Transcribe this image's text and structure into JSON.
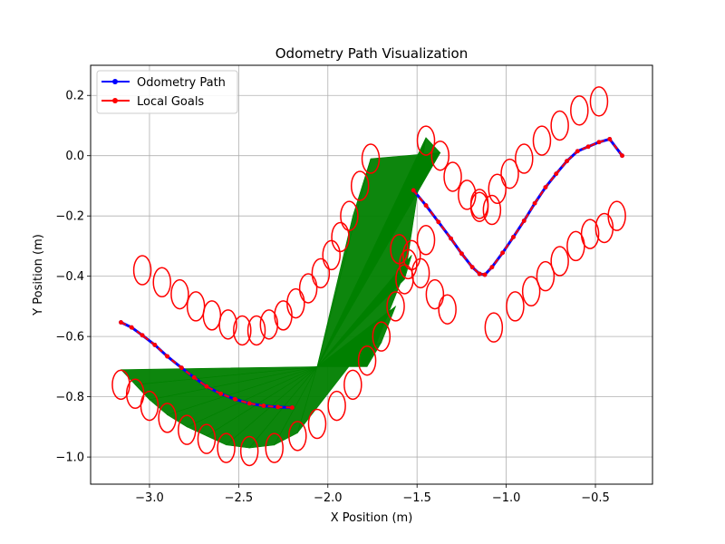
{
  "chart_data": {
    "type": "line",
    "title": "Odometry Path Visualization",
    "xlabel": "X Position (m)",
    "ylabel": "Y Position (m)",
    "xlim": [
      -3.33,
      -0.18
    ],
    "ylim": [
      -1.09,
      0.3
    ],
    "xticks": [
      -3.0,
      -2.5,
      -2.0,
      -1.5,
      -1.0,
      -0.5
    ],
    "xtick_labels": [
      "−3.0",
      "−2.5",
      "−2.0",
      "−1.5",
      "−1.0",
      "−0.5"
    ],
    "yticks": [
      -1.0,
      -0.8,
      -0.6,
      -0.4,
      -0.2,
      0.0,
      0.2
    ],
    "ytick_labels": [
      "−1.0",
      "−0.8",
      "−0.6",
      "−0.4",
      "−0.2",
      "0.0",
      "0.2"
    ],
    "grid": true,
    "legend_position": "top-left",
    "colors": {
      "odometry": "#0000ff",
      "goals": "#ff0000",
      "ellipses": "#ff0000",
      "rays": "#008000",
      "grid": "#b0b0b0"
    },
    "series": [
      {
        "name": "Odometry Path",
        "x": [
          -3.16,
          -3.1,
          -3.04,
          -2.97,
          -2.9,
          -2.82,
          -2.75,
          -2.68,
          -2.6,
          -2.52,
          -2.44,
          -2.36,
          -2.28,
          -2.2
        ],
        "y": [
          -0.553,
          -0.57,
          -0.596,
          -0.628,
          -0.666,
          -0.704,
          -0.736,
          -0.766,
          -0.79,
          -0.808,
          -0.822,
          -0.83,
          -0.834,
          -0.836
        ]
      },
      {
        "name": "Local Goals",
        "x": [
          -3.16,
          -3.1,
          -3.04,
          -2.97,
          -2.9,
          -2.82,
          -2.75,
          -2.68,
          -2.6,
          -2.52,
          -2.44,
          -2.36,
          -2.28,
          -2.2
        ],
        "y": [
          -0.553,
          -0.57,
          -0.596,
          -0.628,
          -0.666,
          -0.704,
          -0.736,
          -0.766,
          -0.79,
          -0.808,
          -0.822,
          -0.83,
          -0.834,
          -0.836
        ]
      },
      {
        "name": "",
        "x": [
          -1.52,
          -1.45,
          -1.38,
          -1.31,
          -1.25,
          -1.19,
          -1.15,
          -1.12,
          -1.08,
          -1.02,
          -0.96,
          -0.9,
          -0.84,
          -0.78,
          -0.72,
          -0.66,
          -0.6,
          -0.54,
          -0.48,
          -0.42,
          -0.35
        ],
        "y": [
          -0.115,
          -0.165,
          -0.22,
          -0.275,
          -0.325,
          -0.37,
          -0.392,
          -0.395,
          -0.37,
          -0.322,
          -0.27,
          -0.216,
          -0.158,
          -0.105,
          -0.06,
          -0.018,
          0.015,
          0.03,
          0.045,
          0.055,
          0.0
        ]
      },
      {
        "name": "",
        "x": [
          -1.52,
          -1.45,
          -1.38,
          -1.31,
          -1.25,
          -1.19,
          -1.15,
          -1.12,
          -1.08,
          -1.02,
          -0.96,
          -0.9,
          -0.84,
          -0.78,
          -0.72,
          -0.66,
          -0.6,
          -0.54,
          -0.48,
          -0.42,
          -0.35
        ],
        "y": [
          -0.115,
          -0.165,
          -0.22,
          -0.275,
          -0.325,
          -0.37,
          -0.392,
          -0.395,
          -0.37,
          -0.322,
          -0.27,
          -0.216,
          -0.158,
          -0.105,
          -0.06,
          -0.018,
          0.015,
          0.03,
          0.045,
          0.055,
          0.0
        ]
      }
    ],
    "ellipses": [
      [
        -3.16,
        -0.76
      ],
      [
        -3.08,
        -0.79
      ],
      [
        -3.0,
        -0.83
      ],
      [
        -2.9,
        -0.87
      ],
      [
        -2.79,
        -0.91
      ],
      [
        -2.68,
        -0.94
      ],
      [
        -2.57,
        -0.97
      ],
      [
        -2.44,
        -0.98
      ],
      [
        -2.3,
        -0.97
      ],
      [
        -2.17,
        -0.93
      ],
      [
        -2.06,
        -0.89
      ],
      [
        -1.95,
        -0.83
      ],
      [
        -1.86,
        -0.76
      ],
      [
        -1.78,
        -0.68
      ],
      [
        -1.7,
        -0.6
      ],
      [
        -1.62,
        -0.5
      ],
      [
        -1.57,
        -0.41
      ],
      [
        -1.53,
        -0.33
      ],
      [
        -3.04,
        -0.38
      ],
      [
        -2.93,
        -0.42
      ],
      [
        -2.83,
        -0.46
      ],
      [
        -2.74,
        -0.5
      ],
      [
        -2.65,
        -0.53
      ],
      [
        -2.56,
        -0.56
      ],
      [
        -2.48,
        -0.58
      ],
      [
        -2.4,
        -0.58
      ],
      [
        -2.33,
        -0.56
      ],
      [
        -2.25,
        -0.53
      ],
      [
        -2.18,
        -0.49
      ],
      [
        -2.11,
        -0.44
      ],
      [
        -2.04,
        -0.39
      ],
      [
        -1.98,
        -0.33
      ],
      [
        -1.93,
        -0.27
      ],
      [
        -1.88,
        -0.2
      ],
      [
        -1.82,
        -0.1
      ],
      [
        -1.76,
        -0.01
      ],
      [
        -1.6,
        -0.31
      ],
      [
        -1.55,
        -0.36
      ],
      [
        -1.48,
        -0.39
      ],
      [
        -1.45,
        -0.28
      ],
      [
        -1.4,
        -0.46
      ],
      [
        -1.33,
        -0.51
      ],
      [
        -1.45,
        0.05
      ],
      [
        -1.37,
        0.0
      ],
      [
        -1.3,
        -0.07
      ],
      [
        -1.22,
        -0.13
      ],
      [
        -1.15,
        -0.17
      ],
      [
        -1.08,
        -0.18
      ],
      [
        -1.05,
        -0.11
      ],
      [
        -0.98,
        -0.06
      ],
      [
        -0.9,
        -0.01
      ],
      [
        -0.8,
        0.05
      ],
      [
        -0.7,
        0.1
      ],
      [
        -0.59,
        0.15
      ],
      [
        -0.48,
        0.18
      ],
      [
        -1.15,
        -0.16
      ],
      [
        -1.07,
        -0.57
      ],
      [
        -0.95,
        -0.5
      ],
      [
        -0.86,
        -0.45
      ],
      [
        -0.78,
        -0.4
      ],
      [
        -0.7,
        -0.35
      ],
      [
        -0.61,
        -0.3
      ],
      [
        -0.53,
        -0.26
      ],
      [
        -0.45,
        -0.24
      ],
      [
        -0.38,
        -0.2
      ]
    ],
    "ray_origins": [
      {
        "from": [
          -2.06,
          -0.7
        ],
        "targets": [
          [
            -3.16,
            -0.71
          ],
          [
            -3.08,
            -0.76
          ],
          [
            -3.0,
            -0.81
          ],
          [
            -2.9,
            -0.86
          ],
          [
            -2.79,
            -0.9
          ],
          [
            -2.68,
            -0.93
          ],
          [
            -2.57,
            -0.96
          ],
          [
            -2.44,
            -0.97
          ],
          [
            -2.3,
            -0.96
          ],
          [
            -2.17,
            -0.92
          ],
          [
            -1.62,
            -0.5
          ],
          [
            -1.7,
            -0.62
          ],
          [
            -1.78,
            -0.7
          ],
          [
            -1.53,
            -0.33
          ],
          [
            -1.57,
            -0.41
          ],
          [
            -1.45,
            0.06
          ],
          [
            -1.37,
            0.01
          ],
          [
            -1.76,
            -0.01
          ],
          [
            -1.86,
            -0.2
          ]
        ]
      }
    ]
  },
  "legend": {
    "items": [
      {
        "label": "Odometry Path",
        "color": "#0000ff"
      },
      {
        "label": "Local Goals",
        "color": "#ff0000"
      }
    ]
  }
}
